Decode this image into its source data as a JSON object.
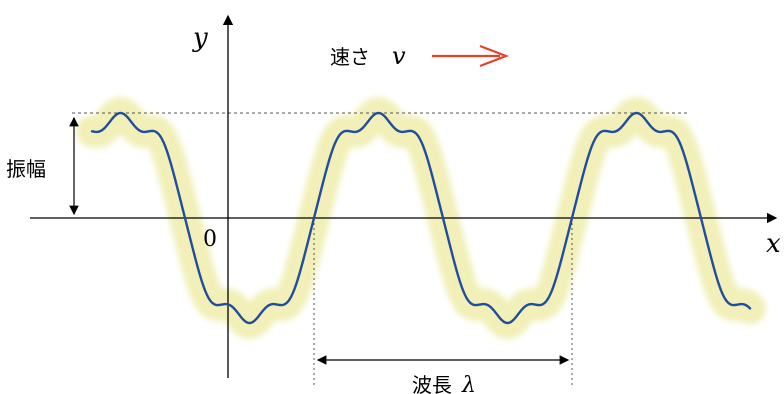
{
  "labels": {
    "y_axis": "y",
    "x_axis": "x",
    "origin": "0",
    "speed_text": "速さ",
    "speed_symbol": "v",
    "amplitude": "振幅",
    "wavelength_text": "波長",
    "wavelength_symbol": "λ"
  },
  "colors": {
    "wave": "#1f4e9c",
    "glow": "#f2f0b8",
    "arrow": "#e8402a",
    "axis": "#000000",
    "guide": "#555555"
  }
}
